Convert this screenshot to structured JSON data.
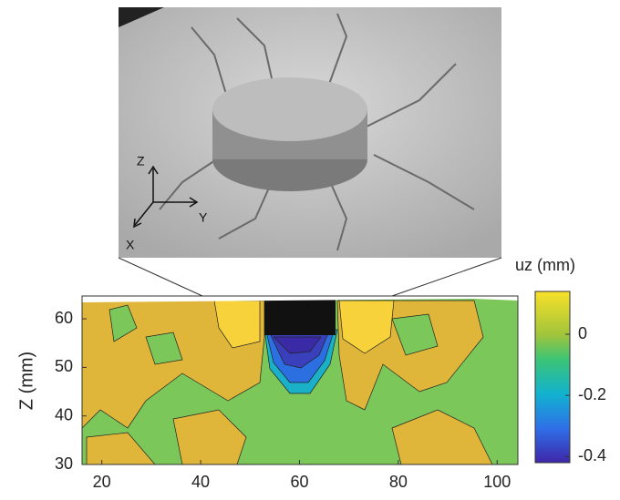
{
  "chart_data": {
    "type": "contour",
    "photo_axis_labels": [
      "Z",
      "Y",
      "X"
    ],
    "xlim": [
      16,
      104.2
    ],
    "xticks": [
      20,
      40,
      60,
      80,
      100
    ],
    "ylim": [
      30,
      64.7
    ],
    "yticks": [
      30,
      40,
      50,
      60
    ],
    "ylabel": "Z (mm)",
    "colorbar_label": "uz (mm)",
    "clim": [
      -0.42,
      0.14
    ],
    "cticks": [
      -0.4,
      -0.2,
      0
    ]
  }
}
